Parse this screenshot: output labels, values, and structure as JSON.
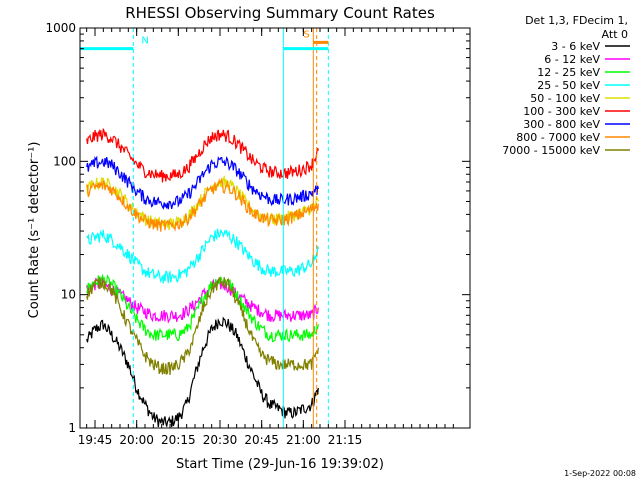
{
  "chart_data": {
    "type": "line",
    "title": "RHESSI Observing Summary Count Rates",
    "xlabel": "Start Time (29-Jun-16 19:39:02)",
    "ylabel": "Count Rate (s⁻¹ detector⁻¹)",
    "ylog": true,
    "ylim": [
      1,
      1000
    ],
    "xlim_minutes": [
      19.66,
      22.0
    ],
    "x_ticks": [
      "19:45",
      "20:00",
      "20:15",
      "20:30",
      "20:45",
      "21:00",
      "21:15"
    ],
    "y_ticks": [
      "1",
      "10",
      "100",
      "1000"
    ],
    "legend_header": [
      "Det 1,3, FDecim 1,",
      "Att 0"
    ],
    "footer_date": "1-Sep-2022 00:08",
    "series": [
      {
        "name": "3 - 6 keV",
        "color": "#000000",
        "x": [
          19.7,
          19.75,
          19.8,
          19.85,
          19.9,
          19.95,
          20.0,
          20.05,
          20.1,
          20.15,
          20.2,
          20.25,
          20.3,
          20.35,
          20.4,
          20.45,
          20.5,
          20.55,
          20.6,
          20.65,
          20.7,
          20.75,
          20.8,
          20.85,
          20.9,
          20.95,
          21.0,
          21.05,
          21.09
        ],
        "values": [
          4.5,
          5.5,
          6,
          5,
          4,
          3,
          2,
          1.5,
          1.2,
          1.1,
          1.1,
          1.2,
          1.5,
          2.5,
          4,
          5.5,
          6.5,
          6,
          5,
          3.5,
          2.5,
          1.8,
          1.5,
          1.4,
          1.3,
          1.3,
          1.4,
          1.5,
          2
        ]
      },
      {
        "name": "6 - 12 keV",
        "color": "#ff00ff",
        "x": [
          19.7,
          19.75,
          19.8,
          19.85,
          19.9,
          19.95,
          20.0,
          20.05,
          20.1,
          20.15,
          20.2,
          20.25,
          20.3,
          20.35,
          20.4,
          20.45,
          20.5,
          20.55,
          20.6,
          20.65,
          20.7,
          20.75,
          20.8,
          20.85,
          20.9,
          20.95,
          21.0,
          21.05,
          21.09
        ],
        "values": [
          11,
          12,
          12,
          11,
          10,
          9,
          8,
          7.5,
          7,
          7,
          7,
          7,
          7.5,
          8.5,
          10,
          11.5,
          12,
          11.5,
          10,
          9,
          8,
          7.5,
          7,
          7,
          7,
          7,
          7,
          7,
          8
        ]
      },
      {
        "name": "12 - 25 keV",
        "color": "#00ff00",
        "x": [
          19.7,
          19.75,
          19.8,
          19.85,
          19.9,
          19.95,
          20.0,
          20.05,
          20.1,
          20.15,
          20.2,
          20.25,
          20.3,
          20.35,
          20.4,
          20.45,
          20.5,
          20.55,
          20.6,
          20.65,
          20.7,
          20.75,
          20.8,
          20.85,
          20.9,
          20.95,
          21.0,
          21.05,
          21.09
        ],
        "values": [
          11,
          12.5,
          13,
          12,
          10,
          8,
          6.5,
          5.5,
          5,
          5,
          5,
          5,
          5.5,
          7,
          9.5,
          12,
          13,
          12.5,
          10,
          8,
          6.5,
          5.5,
          5,
          5,
          5,
          5,
          5,
          5,
          6
        ]
      },
      {
        "name": "25 - 50 keV",
        "color": "#00ffff",
        "x": [
          19.7,
          19.75,
          19.8,
          19.85,
          19.9,
          19.95,
          20.0,
          20.05,
          20.1,
          20.15,
          20.2,
          20.25,
          20.3,
          20.35,
          20.4,
          20.45,
          20.5,
          20.55,
          20.6,
          20.65,
          20.7,
          20.75,
          20.8,
          20.85,
          20.9,
          20.95,
          21.0,
          21.05,
          21.09
        ],
        "values": [
          25,
          27,
          28,
          26,
          23,
          20,
          17,
          15,
          14,
          13.5,
          13.5,
          14,
          15,
          18,
          22,
          27,
          29,
          28,
          25,
          21,
          18,
          16,
          15,
          15,
          15,
          15,
          16,
          17,
          22
        ]
      },
      {
        "name": "50 - 100 keV",
        "color": "#dddd00",
        "x": [
          19.7,
          19.75,
          19.8,
          19.85,
          19.9,
          19.95,
          20.0,
          20.05,
          20.1,
          20.15,
          20.2,
          20.25,
          20.3,
          20.35,
          20.4,
          20.45,
          20.5,
          20.55,
          20.6,
          20.65,
          20.7,
          20.75,
          20.8,
          20.85,
          20.9,
          20.95,
          21.0,
          21.05,
          21.09
        ],
        "values": [
          62,
          68,
          70,
          65,
          57,
          48,
          42,
          37,
          35,
          34,
          34,
          35,
          38,
          45,
          55,
          66,
          70,
          68,
          60,
          50,
          43,
          39,
          37,
          37,
          38,
          40,
          42,
          45,
          50
        ]
      },
      {
        "name": "100 - 300 keV",
        "color": "#ff0000",
        "x": [
          19.7,
          19.75,
          19.8,
          19.85,
          19.9,
          19.95,
          20.0,
          20.05,
          20.1,
          20.15,
          20.2,
          20.25,
          20.3,
          20.35,
          20.4,
          20.45,
          20.5,
          20.55,
          20.6,
          20.65,
          20.7,
          20.75,
          20.8,
          20.85,
          20.9,
          20.95,
          21.0,
          21.05,
          21.09
        ],
        "values": [
          140,
          155,
          160,
          150,
          130,
          112,
          95,
          85,
          80,
          78,
          78,
          80,
          88,
          105,
          130,
          152,
          160,
          155,
          138,
          118,
          100,
          90,
          84,
          82,
          82,
          84,
          88,
          95,
          120
        ]
      },
      {
        "name": "300 - 800 keV",
        "color": "#0000ff",
        "x": [
          19.7,
          19.75,
          19.8,
          19.85,
          19.9,
          19.95,
          20.0,
          20.05,
          20.1,
          20.15,
          20.2,
          20.25,
          20.3,
          20.35,
          20.4,
          20.45,
          20.5,
          20.55,
          20.6,
          20.65,
          20.7,
          20.75,
          20.8,
          20.85,
          20.9,
          20.95,
          21.0,
          21.05,
          21.09
        ],
        "values": [
          88,
          96,
          100,
          94,
          82,
          70,
          60,
          53,
          50,
          49,
          49,
          50,
          55,
          65,
          80,
          95,
          100,
          97,
          86,
          73,
          62,
          56,
          52,
          51,
          52,
          53,
          55,
          58,
          62
        ]
      },
      {
        "name": "800 - 7000 keV",
        "color": "#ff8800",
        "x": [
          19.7,
          19.75,
          19.8,
          19.85,
          19.9,
          19.95,
          20.0,
          20.05,
          20.1,
          20.15,
          20.2,
          20.25,
          20.3,
          20.35,
          20.4,
          20.45,
          20.5,
          20.55,
          20.6,
          20.65,
          20.7,
          20.75,
          20.8,
          20.85,
          20.9,
          20.95,
          21.0,
          21.05,
          21.09
        ],
        "values": [
          60,
          64,
          66,
          62,
          54,
          46,
          40,
          36,
          34,
          33,
          33,
          34,
          37,
          43,
          52,
          62,
          66,
          64,
          57,
          48,
          41,
          38,
          36,
          36,
          37,
          39,
          41,
          44,
          48
        ]
      },
      {
        "name": "7000 - 15000 keV",
        "color": "#808000",
        "x": [
          19.7,
          19.75,
          19.8,
          19.85,
          19.9,
          19.95,
          20.0,
          20.05,
          20.1,
          20.15,
          20.2,
          20.25,
          20.3,
          20.35,
          20.4,
          20.45,
          20.5,
          20.55,
          20.6,
          20.65,
          20.7,
          20.75,
          20.8,
          20.85,
          20.9,
          20.95,
          21.0,
          21.05,
          21.09
        ],
        "values": [
          10,
          12,
          12.5,
          11,
          8,
          6,
          4.5,
          3.5,
          3,
          2.8,
          2.8,
          3,
          3.5,
          5,
          8,
          11,
          12.5,
          12,
          9,
          6.5,
          4.5,
          3.5,
          3.2,
          3,
          3,
          3,
          3,
          3,
          4
        ]
      }
    ],
    "annotations": [
      {
        "label": "N",
        "color": "#00ffff",
        "start_min": 19.66,
        "end_min": 19.98,
        "level": 700
      },
      {
        "label": "S",
        "color": "#ff8800",
        "start_min": 21.06,
        "end_min": 21.15,
        "level": 780
      },
      {
        "label": "",
        "color": "#00ffff",
        "start_min": 20.88,
        "end_min": 21.15,
        "level": 700
      }
    ],
    "vertical_markers": [
      {
        "minute": 19.66,
        "color": "#00ffff",
        "style": "solid"
      },
      {
        "minute": 19.98,
        "color": "#00ffff",
        "style": "dashed"
      },
      {
        "minute": 20.88,
        "color": "#00ffff",
        "style": "solid"
      },
      {
        "minute": 21.06,
        "color": "#ff8800",
        "style": "solid"
      },
      {
        "minute": 21.08,
        "color": "#ff8800",
        "style": "dashed"
      },
      {
        "minute": 21.15,
        "color": "#00ffff",
        "style": "dashed"
      }
    ]
  }
}
